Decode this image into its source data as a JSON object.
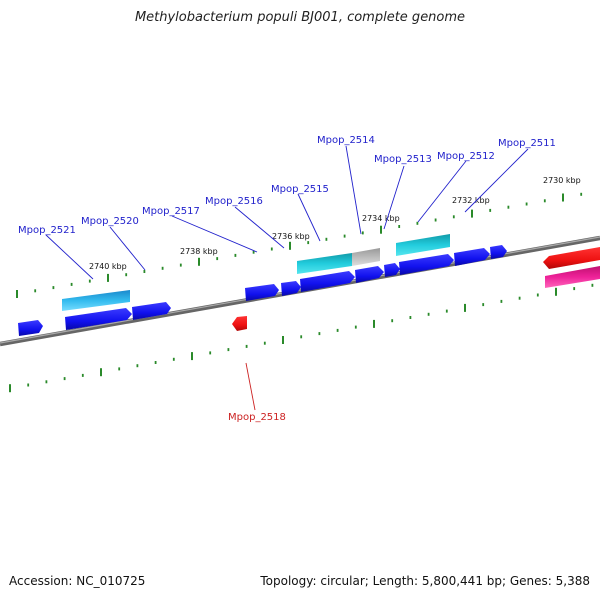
{
  "title": "Methylobacterium populi BJ001, complete genome",
  "footer": {
    "accession": "Accession: NC_010725",
    "summary": "Topology: circular; Length: 5,800,441 bp; Genes: 5,388"
  },
  "ruler_labels": [
    "2730 kbp",
    "2732 kbp",
    "2734 kbp",
    "2736 kbp",
    "2738 kbp",
    "2740 kbp"
  ],
  "gene_labels": {
    "Mpop_2511": "Mpop_2511",
    "Mpop_2512": "Mpop_2512",
    "Mpop_2513": "Mpop_2513",
    "Mpop_2514": "Mpop_2514",
    "Mpop_2515": "Mpop_2515",
    "Mpop_2516": "Mpop_2516",
    "Mpop_2517": "Mpop_2517",
    "Mpop_2518": "Mpop_2518",
    "Mpop_2520": "Mpop_2520",
    "Mpop_2521": "Mpop_2521"
  },
  "colors": {
    "forward_gene": "#1111ee",
    "reverse_gene": "#ee1111",
    "cds_cyan": "#22ccdd",
    "cds_sky": "#33bbee",
    "rna_magenta": "#ee2299",
    "pseudo_gray": "#bbbbbb",
    "backbone": "#777777",
    "tick": "#2a8a2a",
    "label_forward": "#2222cc",
    "label_reverse": "#cc2222"
  }
}
